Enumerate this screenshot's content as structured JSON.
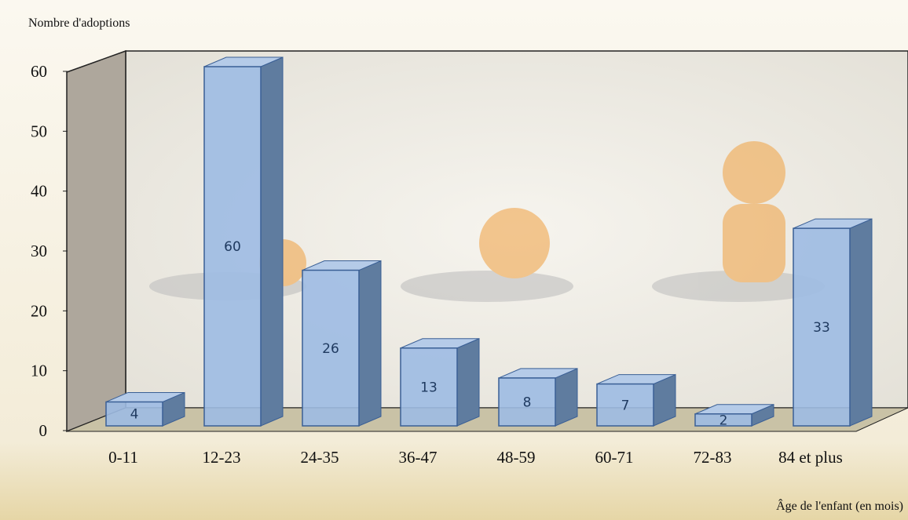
{
  "chart_data": {
    "type": "bar3d",
    "y_label": "Nombre d'adoptions",
    "x_label": "Âge de l'enfant (en mois)",
    "categories": [
      "0-11",
      "12-23",
      "24-35",
      "36-47",
      "48-59",
      "60-71",
      "72-83",
      "84 et plus"
    ],
    "values": [
      4,
      60,
      26,
      13,
      8,
      7,
      2,
      33
    ],
    "color": "#9dbbe3",
    "ylim": [
      0,
      60
    ],
    "yticks": [
      0,
      10,
      20,
      30,
      40,
      50,
      60
    ]
  }
}
